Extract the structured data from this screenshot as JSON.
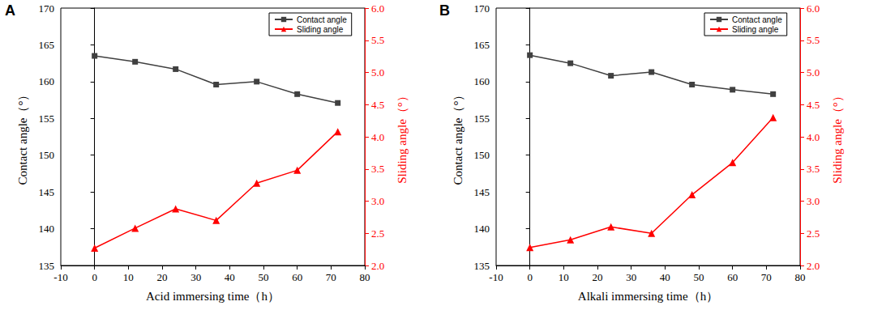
{
  "chart_data": [
    {
      "type": "line",
      "title": "A",
      "x_label": "Acid immersing time（h）",
      "y_label": "Contact angle（°）",
      "y2_label": "Sliding angle（°）",
      "x": [
        0,
        12,
        24,
        36,
        48,
        60,
        72
      ],
      "series": [
        {
          "name": "Contact angle",
          "color": "#404040",
          "marker": "square",
          "values": [
            163.5,
            162.7,
            161.7,
            159.6,
            160.0,
            158.3,
            157.1
          ]
        },
        {
          "name": "Sliding angle",
          "color": "#ff0000",
          "marker": "triangle",
          "axis": "y2",
          "values": [
            2.27,
            2.58,
            2.88,
            2.7,
            3.28,
            3.48,
            4.08
          ]
        }
      ],
      "xlim": [
        -10,
        80
      ],
      "xticks": [
        -10,
        0,
        10,
        20,
        30,
        40,
        50,
        60,
        70,
        80
      ],
      "ylim": [
        135,
        170
      ],
      "yticks": [
        135,
        140,
        145,
        150,
        155,
        160,
        165,
        170
      ],
      "y2lim": [
        2,
        6
      ],
      "y2ticks": [
        {
          "value": 2,
          "label": "2.0"
        },
        2.5,
        {
          "value": 3,
          "label": "3.0"
        },
        3.5,
        {
          "value": 4,
          "label": "4.0"
        },
        4.5,
        {
          "value": 5,
          "label": "5.0"
        },
        5.5,
        {
          "value": 6,
          "label": "6.0"
        }
      ],
      "legend": "upper right",
      "grid": false
    },
    {
      "type": "line",
      "title": "B",
      "x_label": "Alkali immersing time（h）",
      "y_label": "Contact angle（°）",
      "y2_label": "Sliding angle（°）",
      "x": [
        0,
        12,
        24,
        36,
        48,
        60,
        72
      ],
      "series": [
        {
          "name": "Contact angle",
          "color": "#404040",
          "marker": "square",
          "values": [
            163.6,
            162.5,
            160.8,
            161.3,
            159.6,
            158.9,
            158.3
          ]
        },
        {
          "name": "Sliding angle",
          "color": "#ff0000",
          "marker": "triangle",
          "axis": "y2",
          "values": [
            2.28,
            2.4,
            2.6,
            2.5,
            3.1,
            3.6,
            4.3
          ]
        }
      ],
      "xlim": [
        -10,
        80
      ],
      "xticks": [
        -10,
        0,
        10,
        20,
        30,
        40,
        50,
        60,
        70,
        80
      ],
      "ylim": [
        135,
        170
      ],
      "yticks": [
        135,
        140,
        145,
        150,
        155,
        160,
        165,
        170
      ],
      "y2lim": [
        2,
        6
      ],
      "y2ticks": [
        {
          "value": 2,
          "label": "2.0"
        },
        2.5,
        {
          "value": 3,
          "label": "3.0"
        },
        3.5,
        {
          "value": 4,
          "label": "4.0"
        },
        4.5,
        {
          "value": 5,
          "label": "5.0"
        },
        5.5,
        {
          "value": 6,
          "label": "6.0"
        }
      ],
      "legend": "upper right",
      "grid": false
    }
  ]
}
